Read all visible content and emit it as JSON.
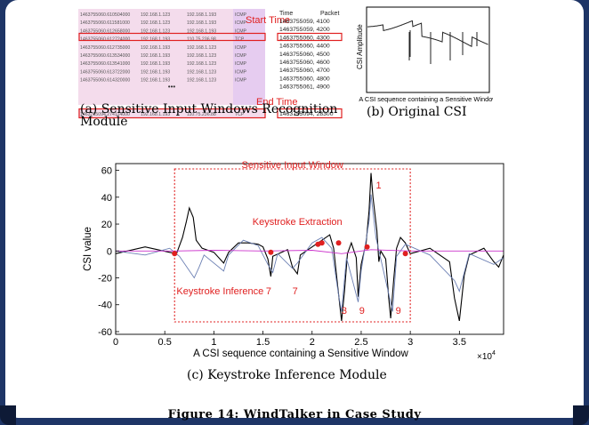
{
  "panel_a": {
    "rows": [
      [
        "1463755060.610504000",
        "192.168.1.123",
        "192.168.1.193",
        "ICMP"
      ],
      [
        "1463755060.611581000",
        "192.168.1.123",
        "192.168.1.193",
        "ICMP"
      ],
      [
        "1463755060.612658000",
        "192.168.1.123",
        "192.168.1.193",
        "ICMP"
      ],
      [
        "1463755060.612724000",
        "192.168.1.193",
        "110.75.236.98",
        "TCP"
      ],
      [
        "1463755060.612735000",
        "192.168.1.193",
        "192.168.1.123",
        "ICMP"
      ],
      [
        "1463755060.613534000",
        "192.168.1.193",
        "192.168.1.123",
        "ICMP"
      ],
      [
        "1463755060.613541000",
        "192.168.1.193",
        "192.168.1.123",
        "ICMP"
      ],
      [
        "1463755060.613722000",
        "192.168.1.193",
        "192.168.1.123",
        "ICMP"
      ],
      [
        "1463755060.614320000",
        "192.168.1.193",
        "192.168.1.123",
        "ICMP"
      ]
    ],
    "ellipsis": "•••",
    "last_row": [
      "1463755094.274114000",
      "192.168.1.193",
      "110.75.236.88",
      "TCP"
    ],
    "log_header": [
      "Time",
      "Packet"
    ],
    "log_rows": [
      "1463755059, 4100",
      "1463755059, 4200",
      "1463755060, 4300",
      "1463755060, 4400",
      "1463755060, 4500",
      "1463755060, 4600",
      "1463755060, 4700",
      "1463755060, 4800",
      "1463755061, 4900"
    ],
    "log_last": "1463755094, 28300",
    "start_label": "Start Time",
    "end_label": "End Time",
    "caption": "(a) Sensitive Input Windows Recognition Module"
  },
  "panel_b": {
    "ylabel": "CSI Amplitude",
    "xlabel": "A CSI sequence containing a Sensitive Window",
    "caption": "(b) Original CSI"
  },
  "chart_data": {
    "type": "line",
    "xlabel": "A CSI sequence containing a Sensitive Window",
    "ylabel": "CSI value",
    "x_multiplier": "×10^4",
    "xlim": [
      0,
      3.95
    ],
    "ylim": [
      -62,
      65
    ],
    "xticks": [
      0,
      0.5,
      1,
      1.5,
      2,
      2.5,
      3,
      3.5
    ],
    "xtick_labels": [
      "0",
      "0.5",
      "1",
      "1.5",
      "2",
      "2.5",
      "3",
      "3.5"
    ],
    "yticks": [
      -60,
      -40,
      -20,
      0,
      20,
      40,
      60
    ],
    "ytick_labels": [
      "-60",
      "-40",
      "-20",
      "0",
      "20",
      "40",
      "60"
    ],
    "grid": false,
    "series": [
      {
        "color": "#000000",
        "points": [
          [
            0,
            -2
          ],
          [
            0.3,
            3
          ],
          [
            0.55,
            -1
          ],
          [
            0.62,
            -2
          ],
          [
            0.68,
            10
          ],
          [
            0.72,
            22
          ],
          [
            0.75,
            32
          ],
          [
            0.79,
            25
          ],
          [
            0.82,
            8
          ],
          [
            0.88,
            2
          ],
          [
            1.0,
            -1
          ],
          [
            1.1,
            -9
          ],
          [
            1.15,
            -1
          ],
          [
            1.25,
            6
          ],
          [
            1.35,
            6
          ],
          [
            1.45,
            5
          ],
          [
            1.5,
            3
          ],
          [
            1.55,
            -6
          ],
          [
            1.58,
            -19
          ],
          [
            1.6,
            -4
          ],
          [
            1.75,
            1
          ],
          [
            1.8,
            -12
          ],
          [
            1.85,
            -17
          ],
          [
            1.88,
            -3
          ],
          [
            2.0,
            3
          ],
          [
            2.1,
            8
          ],
          [
            2.18,
            12
          ],
          [
            2.22,
            2
          ],
          [
            2.26,
            -26
          ],
          [
            2.3,
            -52
          ],
          [
            2.33,
            -30
          ],
          [
            2.36,
            -2
          ],
          [
            2.4,
            6
          ],
          [
            2.45,
            -5
          ],
          [
            2.47,
            -34
          ],
          [
            2.5,
            -10
          ],
          [
            2.55,
            6
          ],
          [
            2.58,
            30
          ],
          [
            2.6,
            58
          ],
          [
            2.62,
            40
          ],
          [
            2.66,
            15
          ],
          [
            2.68,
            -8
          ],
          [
            2.7,
            0
          ],
          [
            2.75,
            -6
          ],
          [
            2.78,
            -35
          ],
          [
            2.8,
            -50
          ],
          [
            2.83,
            -22
          ],
          [
            2.86,
            2
          ],
          [
            2.9,
            10
          ],
          [
            2.95,
            6
          ],
          [
            3.0,
            -2
          ],
          [
            3.2,
            2
          ],
          [
            3.4,
            -8
          ],
          [
            3.45,
            -35
          ],
          [
            3.5,
            -52
          ],
          [
            3.55,
            -18
          ],
          [
            3.6,
            -3
          ],
          [
            3.75,
            2
          ],
          [
            3.85,
            -8
          ],
          [
            3.9,
            -12
          ],
          [
            3.95,
            -3
          ]
        ]
      },
      {
        "color": "#6b7fb3",
        "points": [
          [
            0,
            0
          ],
          [
            0.3,
            -3
          ],
          [
            0.55,
            2
          ],
          [
            0.65,
            -4
          ],
          [
            0.8,
            -20
          ],
          [
            0.85,
            -12
          ],
          [
            0.9,
            -3
          ],
          [
            1.1,
            -15
          ],
          [
            1.15,
            -3
          ],
          [
            1.3,
            8
          ],
          [
            1.45,
            4
          ],
          [
            1.55,
            -10
          ],
          [
            1.6,
            -16
          ],
          [
            1.65,
            -2
          ],
          [
            1.8,
            -13
          ],
          [
            1.85,
            -9
          ],
          [
            2.0,
            6
          ],
          [
            2.1,
            10
          ],
          [
            2.2,
            2
          ],
          [
            2.27,
            -33
          ],
          [
            2.3,
            -45
          ],
          [
            2.35,
            -5
          ],
          [
            2.47,
            -38
          ],
          [
            2.5,
            -15
          ],
          [
            2.58,
            22
          ],
          [
            2.6,
            42
          ],
          [
            2.65,
            10
          ],
          [
            2.78,
            -32
          ],
          [
            2.82,
            -45
          ],
          [
            2.86,
            -4
          ],
          [
            2.95,
            5
          ],
          [
            3.2,
            -3
          ],
          [
            3.45,
            -22
          ],
          [
            3.5,
            -30
          ],
          [
            3.6,
            -2
          ],
          [
            3.85,
            -10
          ],
          [
            3.95,
            -5
          ]
        ]
      },
      {
        "color": "#cc33cc",
        "points": [
          [
            0,
            0
          ],
          [
            0.6,
            0
          ],
          [
            1.0,
            0.5
          ],
          [
            1.5,
            0
          ],
          [
            2.0,
            0.5
          ],
          [
            2.3,
            -2
          ],
          [
            2.6,
            1
          ],
          [
            3.0,
            0
          ],
          [
            3.95,
            0
          ]
        ]
      }
    ],
    "markers": [
      [
        0.6,
        -2
      ],
      [
        1.58,
        -1
      ],
      [
        2.06,
        5
      ],
      [
        2.1,
        6
      ],
      [
        2.27,
        6
      ],
      [
        2.56,
        3
      ],
      [
        2.95,
        -2
      ]
    ],
    "annotations": {
      "window_label": "Sensitive Input Window",
      "extraction_label": "Keystroke Extraction",
      "inference_label": "Keystroke Inference",
      "digits": [
        "7",
        "7",
        "3",
        "9",
        "1",
        "9"
      ]
    }
  },
  "caption_c": "(c) Keystroke Inference Module",
  "figure_title": "Figure 14: WindTalker in Case Study"
}
